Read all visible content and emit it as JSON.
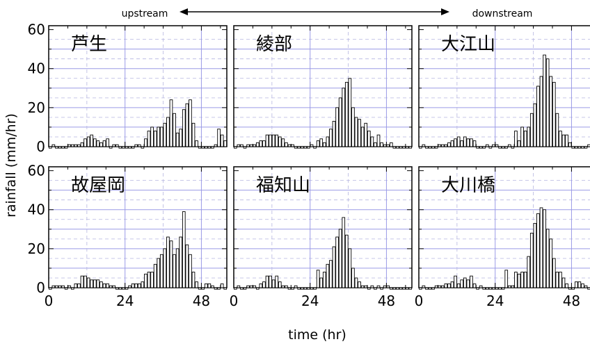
{
  "chart_data": {
    "type": "bar",
    "direction_left": "upstream",
    "direction_right": "downstream",
    "xlabel": "time (hr)",
    "ylabel": "rainfall (mm/hr)",
    "xlim": [
      0,
      56
    ],
    "ylim": [
      0,
      62
    ],
    "xticks": [
      0,
      24,
      48
    ],
    "xtick_labels": [
      "0",
      "24",
      "48"
    ],
    "yticks": [
      0,
      20,
      40,
      60
    ],
    "ytick_labels": [
      "0",
      "20",
      "40",
      "60"
    ],
    "grid": true,
    "panels": [
      {
        "name": "芦生",
        "values": [
          0,
          1,
          0,
          0,
          0,
          0,
          1,
          1,
          1,
          1,
          2,
          4,
          5,
          6,
          4,
          3,
          2,
          3,
          4,
          0,
          1,
          1,
          0,
          0,
          0,
          0,
          0,
          1,
          1,
          0,
          4,
          8,
          10,
          8,
          10,
          10,
          12,
          15,
          24,
          17,
          7,
          9,
          19,
          22,
          24,
          12,
          3,
          0,
          0,
          0,
          0,
          0,
          1,
          9,
          6,
          3
        ]
      },
      {
        "name": "綾部",
        "values": [
          0,
          1,
          1,
          0,
          1,
          1,
          1,
          2,
          3,
          3,
          6,
          6,
          6,
          6,
          5,
          4,
          2,
          1,
          1,
          0,
          0,
          0,
          0,
          0,
          1,
          0,
          3,
          4,
          2,
          5,
          9,
          13,
          20,
          25,
          30,
          33,
          35,
          20,
          15,
          14,
          10,
          12,
          8,
          5,
          2,
          6,
          2,
          1,
          1,
          2,
          0,
          0,
          0,
          0,
          0,
          0
        ]
      },
      {
        "name": "大江山",
        "values": [
          0,
          1,
          0,
          0,
          0,
          0,
          1,
          1,
          1,
          2,
          3,
          4,
          5,
          3,
          5,
          4,
          4,
          3,
          0,
          0,
          0,
          1,
          0,
          1,
          1,
          0,
          0,
          0,
          1,
          0,
          8,
          3,
          10,
          8,
          10,
          17,
          22,
          31,
          36,
          47,
          45,
          36,
          33,
          17,
          8,
          6,
          6,
          2,
          0,
          0,
          0,
          0,
          0,
          1,
          1,
          0
        ]
      },
      {
        "name": "故屋岡",
        "values": [
          0,
          1,
          1,
          1,
          1,
          0,
          1,
          0,
          2,
          2,
          6,
          6,
          5,
          4,
          4,
          4,
          3,
          2,
          2,
          1,
          1,
          0,
          0,
          0,
          0,
          1,
          2,
          2,
          2,
          3,
          7,
          8,
          8,
          12,
          15,
          17,
          20,
          26,
          24,
          17,
          20,
          26,
          39,
          22,
          17,
          8,
          3,
          0,
          0,
          2,
          2,
          1,
          0,
          0,
          2,
          0
        ]
      },
      {
        "name": "福知山",
        "values": [
          0,
          1,
          0,
          0,
          1,
          1,
          1,
          0,
          2,
          3,
          6,
          6,
          4,
          6,
          3,
          1,
          1,
          0,
          0,
          1,
          0,
          0,
          0,
          0,
          0,
          0,
          9,
          5,
          8,
          12,
          14,
          21,
          26,
          30,
          36,
          27,
          20,
          10,
          5,
          3,
          1,
          1,
          0,
          1,
          0,
          1,
          0,
          1,
          1,
          0,
          0,
          0,
          0,
          0,
          0,
          0
        ]
      },
      {
        "name": "大川橋",
        "values": [
          0,
          1,
          0,
          0,
          0,
          1,
          1,
          1,
          2,
          2,
          3,
          6,
          2,
          4,
          5,
          4,
          6,
          2,
          0,
          1,
          0,
          0,
          0,
          0,
          0,
          0,
          0,
          9,
          1,
          1,
          8,
          7,
          8,
          8,
          16,
          28,
          33,
          38,
          41,
          40,
          30,
          25,
          15,
          8,
          8,
          5,
          2,
          0,
          0,
          3,
          3,
          2,
          1,
          0,
          0,
          0
        ]
      }
    ]
  }
}
